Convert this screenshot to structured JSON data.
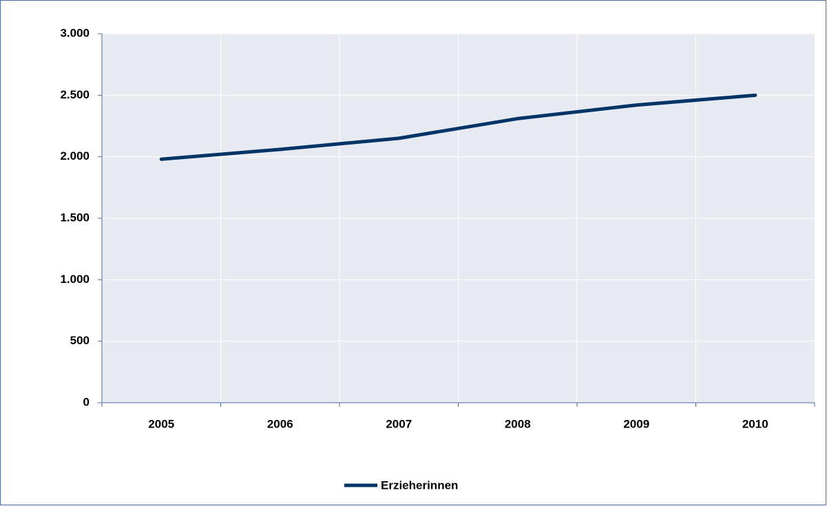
{
  "chart_data": {
    "type": "line",
    "categories": [
      "2005",
      "2006",
      "2007",
      "2008",
      "2009",
      "2010"
    ],
    "series": [
      {
        "name": "Erzieherinnen",
        "color": "#003366",
        "values": [
          1980,
          2060,
          2150,
          2310,
          2420,
          2500
        ]
      }
    ],
    "ylim": [
      0,
      3000
    ],
    "yticks": [
      0,
      500,
      {
        "value": 1000,
        "label": "1.000"
      },
      {
        "value": 1500,
        "label": "1.500"
      },
      {
        "value": 2000,
        "label": "2.000"
      },
      {
        "value": 2500,
        "label": "2.500"
      },
      {
        "value": 3000,
        "label": "3.000"
      }
    ],
    "grid": true,
    "legend": "bottom"
  }
}
